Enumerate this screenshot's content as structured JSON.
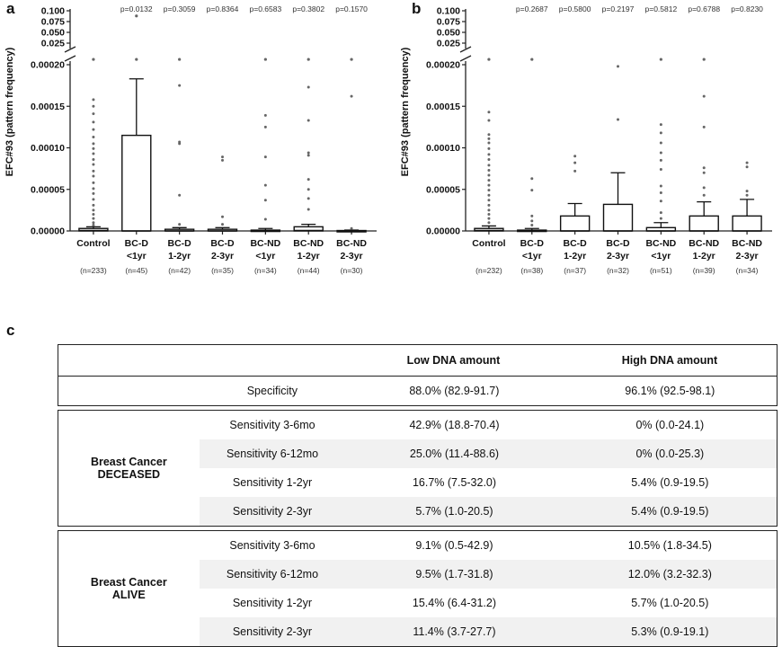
{
  "panels": {
    "a": "a",
    "b": "b",
    "c": "c"
  },
  "chart_data": [
    {
      "type": "box",
      "panel": "a",
      "ylabel": "EFC#93 (pattern frequency)",
      "y_ticks_lower": [
        "0.00000",
        "0.00005",
        "0.00010",
        "0.00015",
        "0.00020"
      ],
      "y_ticks_upper": [
        "0.025",
        "0.050",
        "0.075",
        "0.100"
      ],
      "ylim_lower": [
        0,
        0.0002
      ],
      "ylim_upper": [
        0.025,
        0.1
      ],
      "broken_axis": true,
      "categories": [
        {
          "line1": "Control",
          "line2": "",
          "n": "(n=233)",
          "p": "",
          "q1": 0,
          "median": 5e-07,
          "q3": 3e-06,
          "whisker": 5e-06,
          "outliers": [
            0.000158,
            0.00015,
            0.000141,
            0.000131,
            0.000122,
            0.000113,
            0.000105,
            9.9e-05,
            9.3e-05,
            8.6e-05,
            8e-05,
            7.2e-05,
            6.6e-05,
            5.8e-05,
            5.1e-05,
            4.5e-05,
            3.8e-05,
            3.1e-05,
            2.5e-05,
            2e-05,
            1.5e-05,
            1e-05,
            7e-06
          ]
        },
        {
          "line1": "BC-D",
          "line2": "<1yr",
          "n": "(n=45)",
          "p": "p=0.0132",
          "q1": 0,
          "median": 0,
          "q3": 0.000115,
          "whisker": 0.000183,
          "outliers": []
        },
        {
          "line1": "BC-D",
          "line2": "1-2yr",
          "n": "(n=42)",
          "p": "p=0.3059",
          "q1": 0,
          "median": 0,
          "q3": 2e-06,
          "whisker": 4e-06,
          "outliers": [
            0.000175,
            0.000107,
            0.000105,
            4.3e-05,
            8e-06
          ]
        },
        {
          "line1": "BC-D",
          "line2": "2-3yr",
          "n": "(n=35)",
          "p": "p=0.8364",
          "q1": 0,
          "median": 0,
          "q3": 2e-06,
          "whisker": 4e-06,
          "outliers": [
            8.9e-05,
            8.5e-05,
            1.7e-05,
            8e-06
          ]
        },
        {
          "line1": "BC-ND",
          "line2": "<1yr",
          "n": "(n=34)",
          "p": "p=0.6583",
          "q1": 0,
          "median": 0,
          "q3": 1e-06,
          "whisker": 3e-06,
          "outliers": [
            0.000139,
            0.000125,
            8.9e-05,
            5.5e-05,
            3.7e-05,
            1.4e-05
          ]
        },
        {
          "line1": "BC-ND",
          "line2": "1-2yr",
          "n": "(n=44)",
          "p": "p=0.3802",
          "q1": 0,
          "median": 5e-07,
          "q3": 5e-06,
          "whisker": 8e-06,
          "outliers": [
            0.000173,
            0.000133,
            9.4e-05,
            9.1e-05,
            6.2e-05,
            5e-05,
            3.9e-05,
            2.6e-05
          ]
        },
        {
          "line1": "BC-ND",
          "line2": "2-3yr",
          "n": "(n=30)",
          "p": "p=0.1570",
          "q1": 0,
          "median": 0,
          "q3": 5e-07,
          "whisker": 1e-06,
          "outliers": [
            0.000162,
            3e-06
          ]
        }
      ],
      "above_break": [
        {
          "cat": 1,
          "y": 0.088
        },
        {
          "cat": 0,
          "yfrac": 0.05
        },
        {
          "cat": 1,
          "yfrac": 0.05
        },
        {
          "cat": 2,
          "yfrac": 0.05
        },
        {
          "cat": 4,
          "yfrac": 0.07
        },
        {
          "cat": 5,
          "yfrac": 0.05
        },
        {
          "cat": 6,
          "yfrac": 0.05
        }
      ]
    },
    {
      "type": "box",
      "panel": "b",
      "ylabel": "EFC#93 (pattern frequency)",
      "y_ticks_lower": [
        "0.00000",
        "0.00005",
        "0.00010",
        "0.00015",
        "0.00020"
      ],
      "y_ticks_upper": [
        "0.025",
        "0.050",
        "0.075",
        "0.100"
      ],
      "ylim_lower": [
        0,
        0.0002
      ],
      "ylim_upper": [
        0.025,
        0.1
      ],
      "broken_axis": true,
      "categories": [
        {
          "line1": "Control",
          "line2": "",
          "n": "(n=232)",
          "p": "",
          "q1": 0,
          "median": 5e-07,
          "q3": 3e-06,
          "whisker": 6e-06,
          "outliers": [
            0.000143,
            0.000133,
            0.000116,
            0.000111,
            0.000106,
            9.9e-05,
            9.2e-05,
            8.6e-05,
            7.9e-05,
            7.3e-05,
            6.7e-05,
            6.1e-05,
            5.5e-05,
            4.9e-05,
            4.3e-05,
            3.7e-05,
            3.1e-05,
            2.5e-05,
            2e-05,
            1.5e-05,
            1e-05
          ]
        },
        {
          "line1": "BC-D",
          "line2": "<1yr",
          "n": "(n=38)",
          "p": "p=0.2687",
          "q1": 0,
          "median": 0,
          "q3": 1e-06,
          "whisker": 3e-06,
          "outliers": [
            6.3e-05,
            4.9e-05,
            1.8e-05,
            1.2e-05,
            7e-06
          ]
        },
        {
          "line1": "BC-D",
          "line2": "1-2yr",
          "n": "(n=37)",
          "p": "p=0.5800",
          "q1": 0,
          "median": 0,
          "q3": 1.8e-05,
          "whisker": 3.3e-05,
          "outliers": [
            9e-05,
            8.2e-05,
            7.2e-05
          ]
        },
        {
          "line1": "BC-D",
          "line2": "2-3yr",
          "n": "(n=32)",
          "p": "p=0.2197",
          "q1": 0,
          "median": 0,
          "q3": 3.2e-05,
          "whisker": 7e-05,
          "outliers": [
            0.000198,
            0.000134
          ]
        },
        {
          "line1": "BC-ND",
          "line2": "<1yr",
          "n": "(n=51)",
          "p": "p=0.5812",
          "q1": 0,
          "median": 0,
          "q3": 4e-06,
          "whisker": 1e-05,
          "outliers": [
            0.000128,
            0.000118,
            0.000106,
            9.4e-05,
            8.5e-05,
            7.4e-05,
            5.4e-05,
            4.6e-05,
            3.6e-05,
            2.2e-05,
            1.5e-05
          ]
        },
        {
          "line1": "BC-ND",
          "line2": "1-2yr",
          "n": "(n=39)",
          "p": "p=0.6788",
          "q1": 0,
          "median": 0,
          "q3": 1.8e-05,
          "whisker": 3.5e-05,
          "outliers": [
            0.000162,
            0.000125,
            7.6e-05,
            7e-05,
            5.2e-05,
            4.3e-05
          ]
        },
        {
          "line1": "BC-ND",
          "line2": "2-3yr",
          "n": "(n=34)",
          "p": "p=0.8230",
          "q1": 0,
          "median": 0,
          "q3": 1.8e-05,
          "whisker": 3.8e-05,
          "outliers": [
            8.2e-05,
            7.7e-05,
            4.8e-05,
            4.3e-05
          ]
        }
      ],
      "above_break": [
        {
          "cat": 0,
          "yfrac": 0.05
        },
        {
          "cat": 1,
          "yfrac": 0.05
        },
        {
          "cat": 4,
          "yfrac": 0.05
        },
        {
          "cat": 5,
          "yfrac": 0.05
        }
      ]
    }
  ],
  "table": {
    "header": {
      "col1": "Low DNA amount",
      "col2": "High DNA amount"
    },
    "specificity": {
      "label": "Specificity",
      "low": "88.0% (82.9-91.7)",
      "high": "96.1% (92.5-98.1)"
    },
    "groups": [
      {
        "label_line1": "Breast Cancer",
        "label_line2": "DECEASED",
        "rows": [
          {
            "metric": "Sensitivity 3-6mo",
            "low": "42.9% (18.8-70.4)",
            "high": "0% (0.0-24.1)"
          },
          {
            "metric": "Sensitivity 6-12mo",
            "low": "25.0% (11.4-88.6)",
            "high": "0% (0.0-25.3)"
          },
          {
            "metric": "Sensitivity 1-2yr",
            "low": "16.7% (7.5-32.0)",
            "high": "5.4% (0.9-19.5)"
          },
          {
            "metric": "Sensitivity 2-3yr",
            "low": "5.7% (1.0-20.5)",
            "high": "5.4% (0.9-19.5)"
          }
        ]
      },
      {
        "label_line1": "Breast Cancer",
        "label_line2": "ALIVE",
        "rows": [
          {
            "metric": "Sensitivity 3-6mo",
            "low": "9.1% (0.5-42.9)",
            "high": "10.5% (1.8-34.5)"
          },
          {
            "metric": "Sensitivity 6-12mo",
            "low": "9.5% (1.7-31.8)",
            "high": "12.0% (3.2-32.3)"
          },
          {
            "metric": "Sensitivity 1-2yr",
            "low": "15.4% (6.4-31.2)",
            "high": "5.7% (1.0-20.5)"
          },
          {
            "metric": "Sensitivity 2-3yr",
            "low": "11.4% (3.7-27.7)",
            "high": "5.3% (0.9-19.1)"
          }
        ]
      }
    ]
  }
}
